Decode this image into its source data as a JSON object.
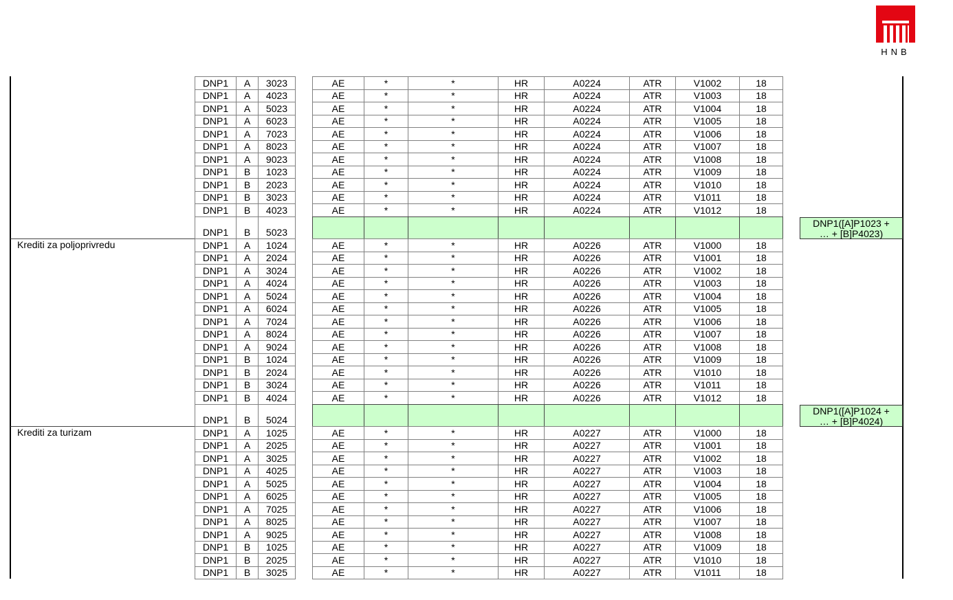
{
  "logo": {
    "text": "HNB",
    "color": "#e30613"
  },
  "colors": {
    "total_row": "#ccffcc"
  },
  "columns": {
    "mark": "AE",
    "star1": "*",
    "star2": "*",
    "country": "HR",
    "unit": "ATR",
    "value": "18",
    "prefix": "DNP1"
  },
  "groups": [
    {
      "label": "",
      "article": "A0224",
      "rows": [
        [
          "A",
          "3023",
          "V1002"
        ],
        [
          "A",
          "4023",
          "V1003"
        ],
        [
          "A",
          "5023",
          "V1004"
        ],
        [
          "A",
          "6023",
          "V1005"
        ],
        [
          "A",
          "7023",
          "V1006"
        ],
        [
          "A",
          "8023",
          "V1007"
        ],
        [
          "A",
          "9023",
          "V1008"
        ],
        [
          "B",
          "1023",
          "V1009"
        ],
        [
          "B",
          "2023",
          "V1010"
        ],
        [
          "B",
          "3023",
          "V1011"
        ],
        [
          "B",
          "4023",
          "V1012"
        ]
      ],
      "total": {
        "letter": "B",
        "code": "5023",
        "formula": "DNP1([A]P1023 + … + [B]P4023)"
      }
    },
    {
      "label": "Krediti za poljoprivredu",
      "article": "A0226",
      "rows": [
        [
          "A",
          "1024",
          "V1000"
        ],
        [
          "A",
          "2024",
          "V1001"
        ],
        [
          "A",
          "3024",
          "V1002"
        ],
        [
          "A",
          "4024",
          "V1003"
        ],
        [
          "A",
          "5024",
          "V1004"
        ],
        [
          "A",
          "6024",
          "V1005"
        ],
        [
          "A",
          "7024",
          "V1006"
        ],
        [
          "A",
          "8024",
          "V1007"
        ],
        [
          "A",
          "9024",
          "V1008"
        ],
        [
          "B",
          "1024",
          "V1009"
        ],
        [
          "B",
          "2024",
          "V1010"
        ],
        [
          "B",
          "3024",
          "V1011"
        ],
        [
          "B",
          "4024",
          "V1012"
        ]
      ],
      "total": {
        "letter": "B",
        "code": "5024",
        "formula": "DNP1([A]P1024 + … + [B]P4024)"
      }
    },
    {
      "label": "Krediti za turizam",
      "article": "A0227",
      "rows": [
        [
          "A",
          "1025",
          "V1000"
        ],
        [
          "A",
          "2025",
          "V1001"
        ],
        [
          "A",
          "3025",
          "V1002"
        ],
        [
          "A",
          "4025",
          "V1003"
        ],
        [
          "A",
          "5025",
          "V1004"
        ],
        [
          "A",
          "6025",
          "V1005"
        ],
        [
          "A",
          "7025",
          "V1006"
        ],
        [
          "A",
          "8025",
          "V1007"
        ],
        [
          "A",
          "9025",
          "V1008"
        ],
        [
          "B",
          "1025",
          "V1009"
        ],
        [
          "B",
          "2025",
          "V1010"
        ],
        [
          "B",
          "3025",
          "V1011"
        ]
      ]
    }
  ]
}
